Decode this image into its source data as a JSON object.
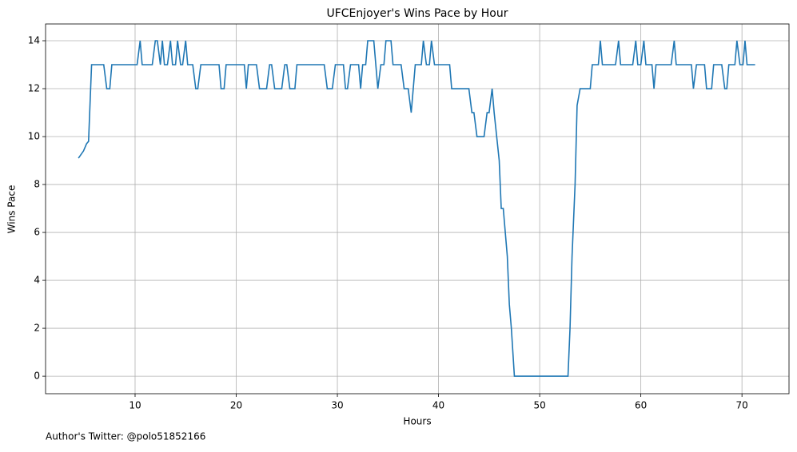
{
  "chart_data": {
    "type": "line",
    "title": "UFCEnjoyer's Wins Pace by Hour",
    "xlabel": "Hours",
    "ylabel": "Wins Pace",
    "annotation": "Author's Twitter: @polo51852166",
    "color": "#1f77b4",
    "grid": true,
    "xlim": [
      1.15,
      74.65
    ],
    "ylim": [
      -0.73,
      14.7
    ],
    "xticks": [
      10,
      20,
      30,
      40,
      50,
      60,
      70
    ],
    "yticks": [
      0,
      2,
      4,
      6,
      8,
      10,
      12,
      14
    ],
    "x": [
      4.4,
      4.9,
      5.2,
      5.4,
      5.7,
      6.9,
      7.2,
      7.5,
      7.7,
      10.2,
      10.5,
      10.7,
      11.7,
      12.0,
      12.2,
      12.5,
      12.7,
      12.9,
      13.2,
      13.5,
      13.7,
      14.0,
      14.2,
      14.5,
      14.7,
      15.0,
      15.2,
      15.7,
      16.0,
      16.2,
      16.5,
      18.3,
      18.5,
      18.8,
      19.0,
      20.8,
      21.0,
      21.2,
      22.0,
      22.3,
      23.0,
      23.3,
      23.5,
      23.8,
      24.5,
      24.8,
      25.0,
      25.3,
      25.8,
      26.0,
      28.7,
      29.0,
      29.5,
      29.8,
      30.6,
      30.8,
      31.0,
      31.3,
      32.1,
      32.3,
      32.5,
      32.8,
      33.0,
      33.6,
      33.8,
      34.0,
      34.3,
      34.6,
      34.8,
      35.3,
      35.5,
      36.3,
      36.6,
      37.0,
      37.3,
      37.5,
      37.7,
      38.3,
      38.5,
      38.8,
      39.1,
      39.3,
      39.6,
      41.1,
      41.3,
      43.0,
      43.3,
      43.5,
      43.8,
      44.5,
      44.8,
      45.0,
      45.3,
      45.5,
      46.0,
      46.2,
      46.4,
      46.8,
      47.0,
      47.2,
      47.5,
      52.8,
      53.0,
      53.2,
      53.5,
      53.7,
      54.0,
      55.0,
      55.2,
      55.8,
      56.0,
      56.2,
      57.5,
      57.8,
      58.0,
      59.2,
      59.5,
      59.7,
      60.0,
      60.3,
      60.5,
      61.1,
      61.3,
      61.5,
      63.0,
      63.3,
      63.5,
      65.0,
      65.2,
      65.5,
      66.3,
      66.5,
      67.0,
      67.2,
      68.0,
      68.3,
      68.5,
      68.7,
      69.3,
      69.5,
      69.8,
      70.1,
      70.3,
      70.5,
      71.3
    ],
    "values": [
      9.1,
      9.4,
      9.7,
      9.8,
      13,
      13,
      12,
      12,
      13,
      13,
      14,
      13,
      13,
      14,
      14,
      13,
      14,
      13,
      13,
      14,
      13,
      13,
      14,
      13,
      13,
      14,
      13,
      13,
      12,
      12,
      13,
      13,
      12,
      12,
      13,
      13,
      12,
      13,
      13,
      12,
      12,
      13,
      13,
      12,
      12,
      13,
      13,
      12,
      12,
      13,
      13,
      12,
      12,
      13,
      13,
      12,
      12,
      13,
      13,
      12,
      13,
      13,
      14,
      14,
      13,
      12,
      13,
      13,
      14,
      14,
      13,
      13,
      12,
      12,
      11,
      12,
      13,
      13,
      14,
      13,
      13,
      14,
      13,
      13,
      12,
      12,
      11,
      11,
      10,
      10,
      11,
      11,
      12,
      11,
      9,
      7,
      7,
      5,
      3,
      2,
      0,
      0,
      2,
      5,
      8,
      11.3,
      12,
      12,
      13,
      13,
      14,
      13,
      13,
      14,
      13,
      13,
      14,
      13,
      13,
      14,
      13,
      13,
      12,
      13,
      13,
      14,
      13,
      13,
      12,
      13,
      13,
      12,
      12,
      13,
      13,
      12,
      12,
      13,
      13,
      14,
      13,
      13,
      14,
      13,
      13
    ]
  }
}
